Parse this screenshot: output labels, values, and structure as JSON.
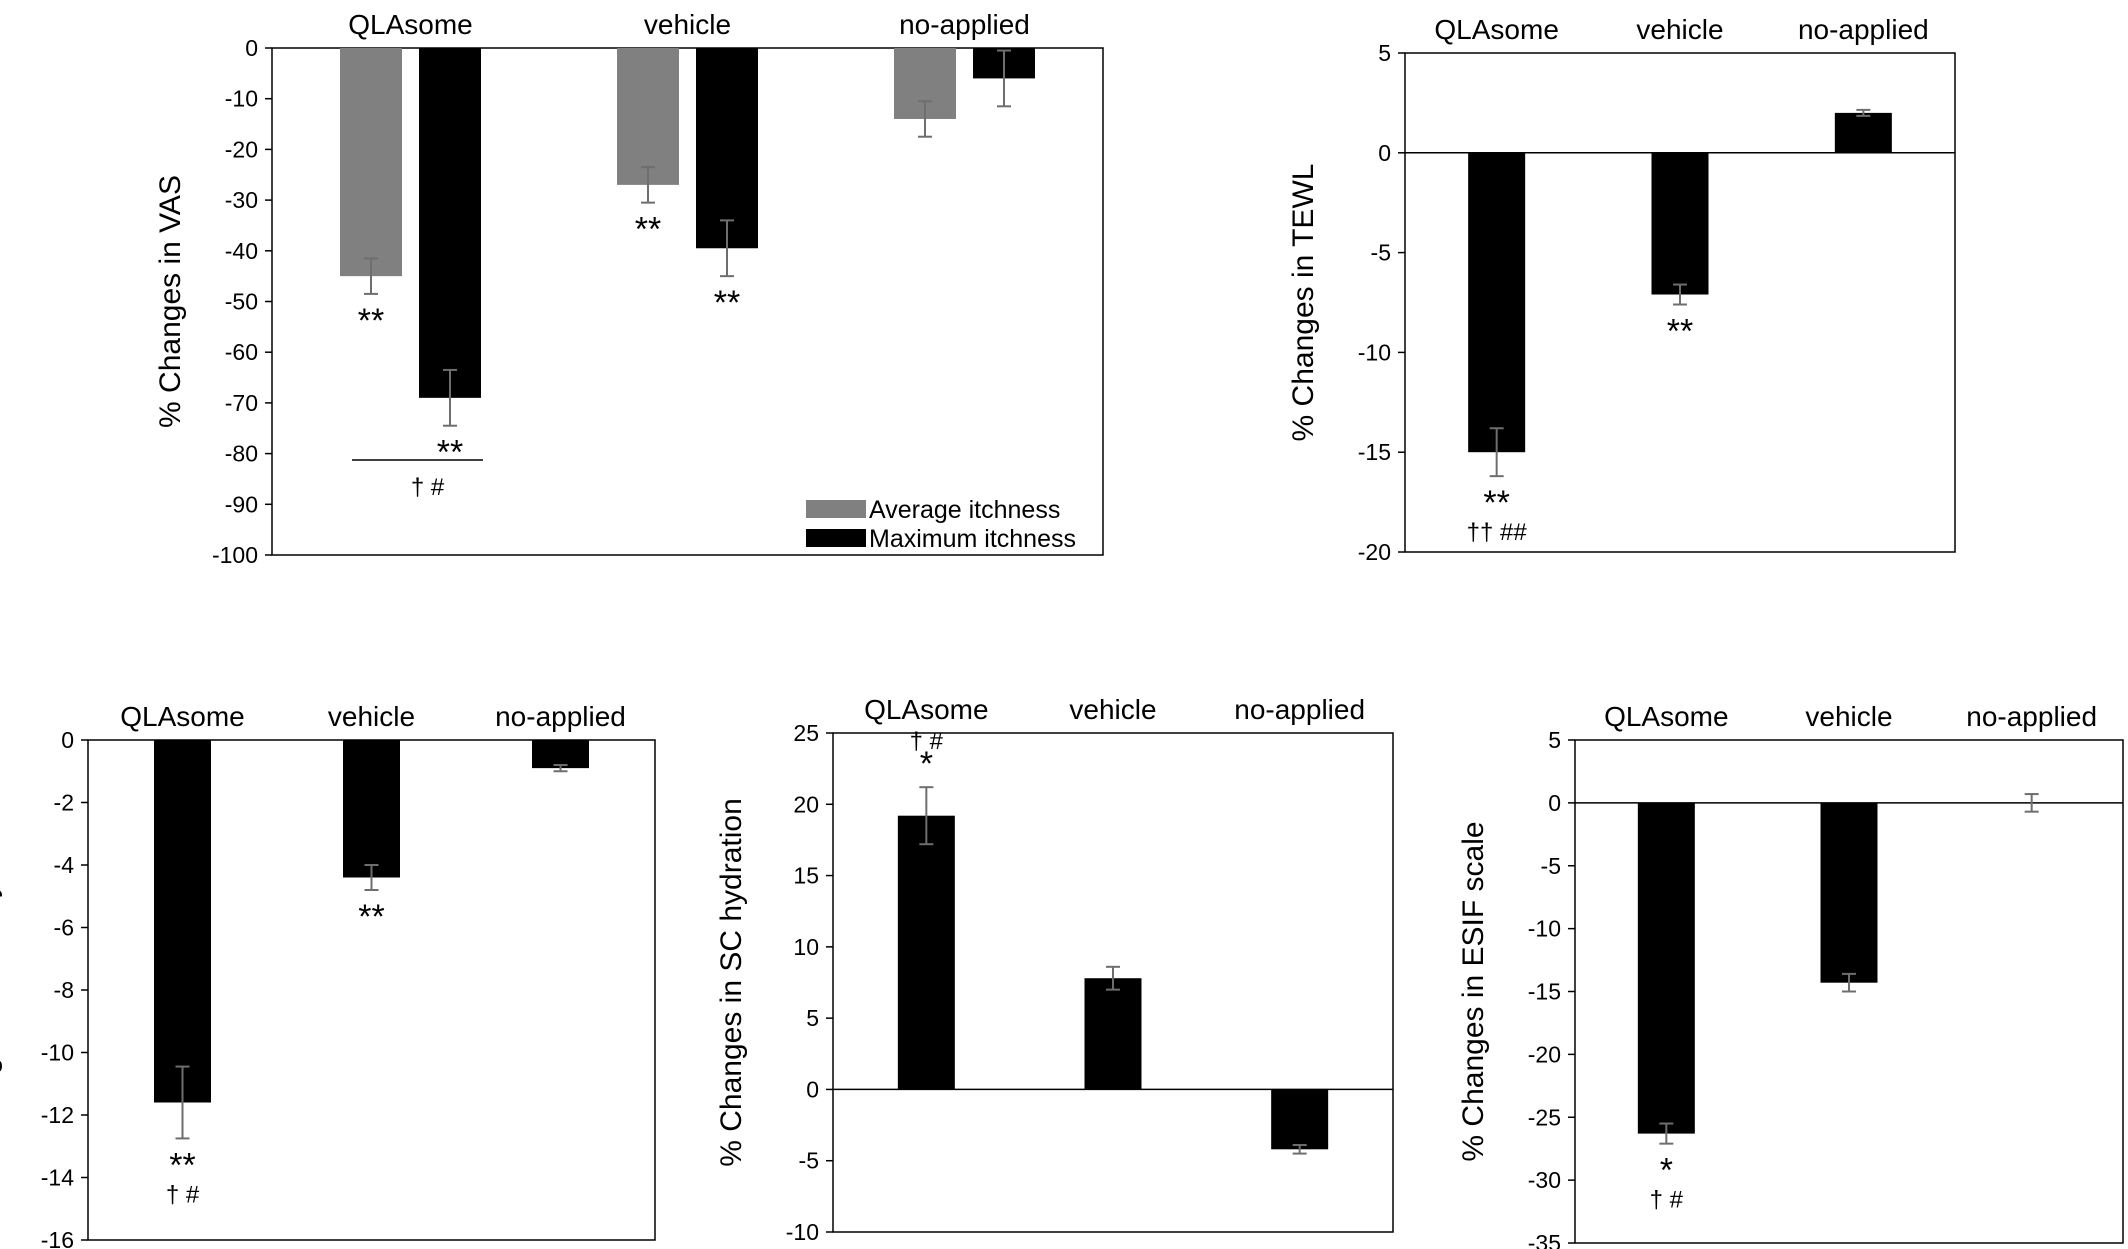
{
  "chart_data": [
    {
      "id": "vas",
      "type": "bar",
      "categories": [
        "QLAsome",
        "vehicle",
        "no-applied"
      ],
      "ylabel": "% Changes in VAS",
      "ylim": [
        -100,
        0
      ],
      "yticks": [
        0,
        -10,
        -20,
        -30,
        -40,
        -50,
        -60,
        -70,
        -80,
        -90,
        -100
      ],
      "series": [
        {
          "name": "Average itchness",
          "color": "#808080",
          "values": [
            -45,
            -27,
            -14
          ],
          "errors": [
            3.5,
            3.5,
            3.5
          ]
        },
        {
          "name": "Maximum itchness",
          "color": "#000000",
          "values": [
            -69,
            -39.5,
            -6
          ],
          "errors": [
            5.5,
            5.5,
            5.5
          ]
        }
      ],
      "annotations": [
        {
          "series": 0,
          "category": 0,
          "text": "**"
        },
        {
          "series": 1,
          "category": 0,
          "text": "**"
        },
        {
          "series": 0,
          "category": 1,
          "text": "**"
        },
        {
          "series": 1,
          "category": 1,
          "text": "**"
        },
        {
          "category": 0,
          "text": "† #",
          "bracket": true
        }
      ],
      "legend": "bottom-right"
    },
    {
      "id": "tewl",
      "type": "bar",
      "categories": [
        "QLAsome",
        "vehicle",
        "no-applied"
      ],
      "ylabel": "% Changes in TEWL",
      "ylim": [
        -20,
        5
      ],
      "yticks": [
        5,
        0,
        -5,
        -10,
        -15,
        -20
      ],
      "series": [
        {
          "color": "#000000",
          "values": [
            -15,
            -7.1,
            2
          ],
          "errors": [
            1.2,
            0.5,
            0.15
          ]
        }
      ],
      "annotations": [
        {
          "category": 0,
          "text": "**"
        },
        {
          "category": 0,
          "text": "†† ##"
        },
        {
          "category": 1,
          "text": "**"
        }
      ]
    },
    {
      "id": "erythema",
      "type": "bar",
      "categories": [
        "QLAsome",
        "vehicle",
        "no-applied"
      ],
      "ylabel": "% Changes in skin erythema",
      "ylim": [
        -16,
        0
      ],
      "yticks": [
        0,
        -2,
        -4,
        -6,
        -8,
        -10,
        -12,
        -14,
        -16
      ],
      "series": [
        {
          "color": "#000000",
          "values": [
            -11.6,
            -4.4,
            -0.9
          ],
          "errors": [
            1.15,
            0.4,
            0.1
          ]
        }
      ],
      "annotations": [
        {
          "category": 0,
          "text": "**"
        },
        {
          "category": 0,
          "text": "† #"
        },
        {
          "category": 1,
          "text": "**"
        }
      ]
    },
    {
      "id": "hydration",
      "type": "bar",
      "categories": [
        "QLAsome",
        "vehicle",
        "no-applied"
      ],
      "ylabel": "% Changes in SC hydration",
      "ylim": [
        -10,
        25
      ],
      "yticks": [
        25,
        20,
        15,
        10,
        5,
        0,
        -5,
        -10
      ],
      "series": [
        {
          "color": "#000000",
          "values": [
            19.2,
            7.8,
            -4.2
          ],
          "errors": [
            2,
            0.8,
            0.3
          ]
        }
      ],
      "annotations": [
        {
          "category": 0,
          "text": "*"
        },
        {
          "category": 0,
          "text": "† #"
        }
      ]
    },
    {
      "id": "esif",
      "type": "bar",
      "categories": [
        "QLAsome",
        "vehicle",
        "no-applied"
      ],
      "ylabel": "% Changes in ESIF scale",
      "ylim": [
        -35,
        5
      ],
      "yticks": [
        5,
        0,
        -5,
        -10,
        -15,
        -20,
        -25,
        -30,
        -35
      ],
      "series": [
        {
          "color": "#000000",
          "values": [
            -26.3,
            -14.3,
            0
          ],
          "errors": [
            0.8,
            0.7,
            0.7
          ]
        }
      ],
      "annotations": [
        {
          "category": 0,
          "text": "*"
        },
        {
          "category": 0,
          "text": "† #"
        }
      ]
    }
  ]
}
